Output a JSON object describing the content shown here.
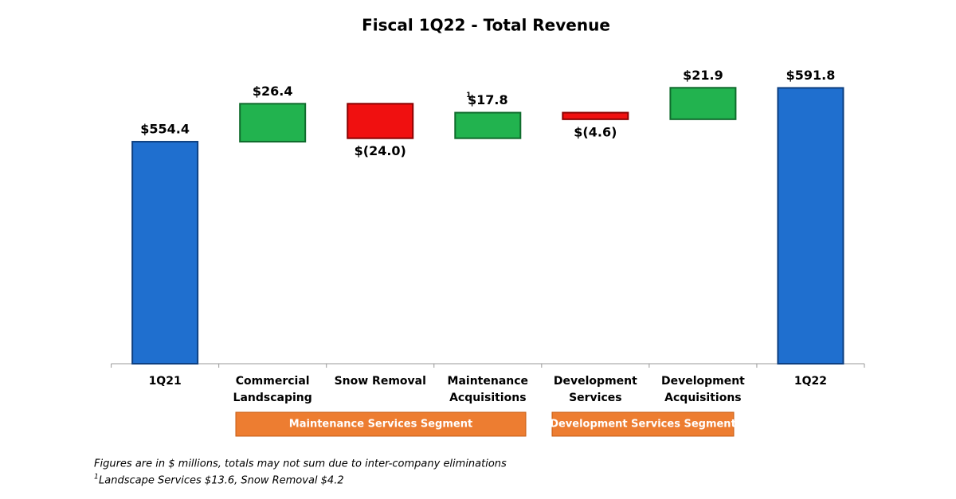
{
  "chart_data": {
    "type": "waterfall",
    "title": "Fiscal 1Q22 - Total Revenue",
    "categories": [
      [
        "1Q21"
      ],
      [
        "Commercial",
        "Landscaping"
      ],
      [
        "Snow Removal"
      ],
      [
        "Maintenance",
        "Acquisitions"
      ],
      [
        "Development",
        "Services"
      ],
      [
        "Development",
        "Acquisitions"
      ],
      [
        "1Q22"
      ]
    ],
    "values": [
      554.4,
      26.4,
      -24.0,
      17.8,
      -4.6,
      21.9,
      591.8
    ],
    "value_labels": [
      "$554.4",
      "$26.4",
      "$(24.0)",
      "$17.8",
      "$(4.6)",
      "$21.9",
      "$591.8"
    ],
    "is_total": [
      true,
      false,
      false,
      false,
      false,
      false,
      true
    ],
    "colors": {
      "total": "#1f6fcf",
      "increase": "#22b34f",
      "decrease": "#f01010"
    },
    "ylim": [
      400,
      620
    ],
    "footnote_marker": "1",
    "segments": [
      "Maintenance Services Segment",
      "Development Services Segment"
    ],
    "notes": [
      "Figures are in $ millions, totals may not sum due to inter-company eliminations",
      "Landscape Services $13.6, Snow Removal $4.2"
    ]
  }
}
